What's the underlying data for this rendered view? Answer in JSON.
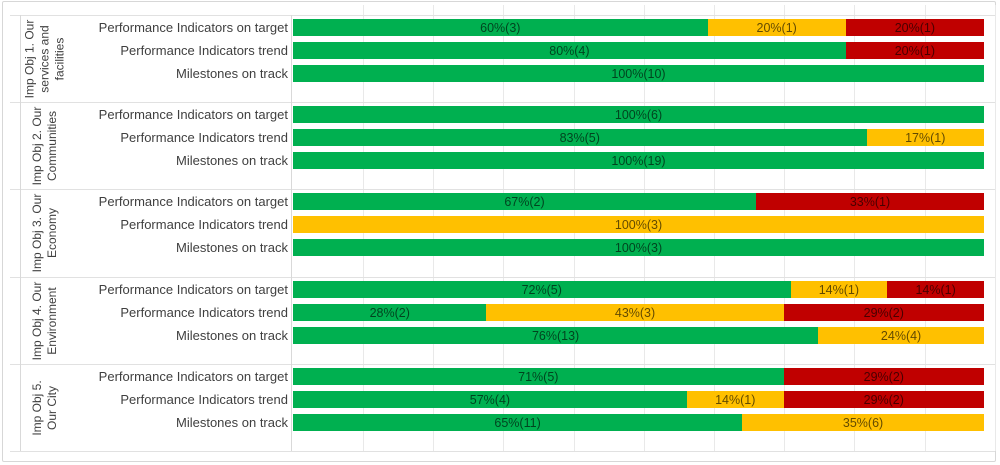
{
  "chart_data": {
    "type": "bar",
    "variant": "horizontal-100%-stacked",
    "title": "",
    "xlabel": "",
    "ylabel": "",
    "xlim": [
      0,
      100
    ],
    "grid": true,
    "gridline_interval_pct": 10,
    "legend": "none",
    "status_colors": {
      "green": "#00B050",
      "amber": "#FFC000",
      "red": "#C00000"
    },
    "groups": [
      {
        "label": "Imp Obj 1. Our services and facilities",
        "label_display": "Imp Obj 1. Our\nservices and\nfacilities",
        "rows": [
          {
            "label": "Performance Indicators on target",
            "segments": [
              {
                "status": "green",
                "pct": 60,
                "label": "60%(3)"
              },
              {
                "status": "amber",
                "pct": 20,
                "label": "20%(1)"
              },
              {
                "status": "red",
                "pct": 20,
                "label": "20%(1)"
              }
            ]
          },
          {
            "label": "Performance Indicators trend",
            "segments": [
              {
                "status": "green",
                "pct": 80,
                "label": "80%(4)"
              },
              {
                "status": "red",
                "pct": 20,
                "label": "20%(1)"
              }
            ]
          },
          {
            "label": "Milestones on track",
            "segments": [
              {
                "status": "green",
                "pct": 100,
                "label": "100%(10)"
              }
            ]
          }
        ]
      },
      {
        "label": "Imp Obj 2. Our Communities",
        "label_display": "Imp Obj 2. Our\nCommunities",
        "rows": [
          {
            "label": "Performance Indicators on target",
            "segments": [
              {
                "status": "green",
                "pct": 100,
                "label": "100%(6)"
              }
            ]
          },
          {
            "label": "Performance Indicators trend",
            "segments": [
              {
                "status": "green",
                "pct": 83,
                "label": "83%(5)"
              },
              {
                "status": "amber",
                "pct": 17,
                "label": "17%(1)"
              }
            ]
          },
          {
            "label": "Milestones on track",
            "segments": [
              {
                "status": "green",
                "pct": 100,
                "label": "100%(19)"
              }
            ]
          }
        ]
      },
      {
        "label": "Imp Obj 3. Our Economy",
        "label_display": "Imp Obj 3. Our\nEconomy",
        "rows": [
          {
            "label": "Performance Indicators on target",
            "segments": [
              {
                "status": "green",
                "pct": 67,
                "label": "67%(2)"
              },
              {
                "status": "red",
                "pct": 33,
                "label": "33%(1)"
              }
            ]
          },
          {
            "label": "Performance Indicators trend",
            "segments": [
              {
                "status": "amber",
                "pct": 100,
                "label": "100%(3)"
              }
            ]
          },
          {
            "label": "Milestones on track",
            "segments": [
              {
                "status": "green",
                "pct": 100,
                "label": "100%(3)"
              }
            ]
          }
        ]
      },
      {
        "label": "Imp Obj 4. Our Environment",
        "label_display": "Imp Obj 4. Our\nEnvironment",
        "rows": [
          {
            "label": "Performance Indicators on target",
            "segments": [
              {
                "status": "green",
                "pct": 72,
                "label": "72%(5)"
              },
              {
                "status": "amber",
                "pct": 14,
                "label": "14%(1)"
              },
              {
                "status": "red",
                "pct": 14,
                "label": "14%(1)"
              }
            ]
          },
          {
            "label": "Performance Indicators trend",
            "segments": [
              {
                "status": "green",
                "pct": 28,
                "label": "28%(2)"
              },
              {
                "status": "amber",
                "pct": 43,
                "label": "43%(3)"
              },
              {
                "status": "red",
                "pct": 29,
                "label": "29%(2)"
              }
            ]
          },
          {
            "label": "Milestones on track",
            "segments": [
              {
                "status": "green",
                "pct": 76,
                "label": "76%(13)"
              },
              {
                "status": "amber",
                "pct": 24,
                "label": "24%(4)"
              }
            ]
          }
        ]
      },
      {
        "label": "Imp Obj 5. Our City",
        "label_display": "Imp Obj 5.\nOur City",
        "rows": [
          {
            "label": "Performance Indicators on target",
            "segments": [
              {
                "status": "green",
                "pct": 71,
                "label": "71%(5)"
              },
              {
                "status": "red",
                "pct": 29,
                "label": "29%(2)"
              }
            ]
          },
          {
            "label": "Performance Indicators trend",
            "segments": [
              {
                "status": "green",
                "pct": 57,
                "label": "57%(4)"
              },
              {
                "status": "amber",
                "pct": 14,
                "label": "14%(1)"
              },
              {
                "status": "red",
                "pct": 29,
                "label": "29%(2)"
              }
            ]
          },
          {
            "label": "Milestones on track",
            "segments": [
              {
                "status": "green",
                "pct": 65,
                "label": "65%(11)"
              },
              {
                "status": "amber",
                "pct": 35,
                "label": "35%(6)"
              }
            ]
          }
        ]
      }
    ]
  }
}
